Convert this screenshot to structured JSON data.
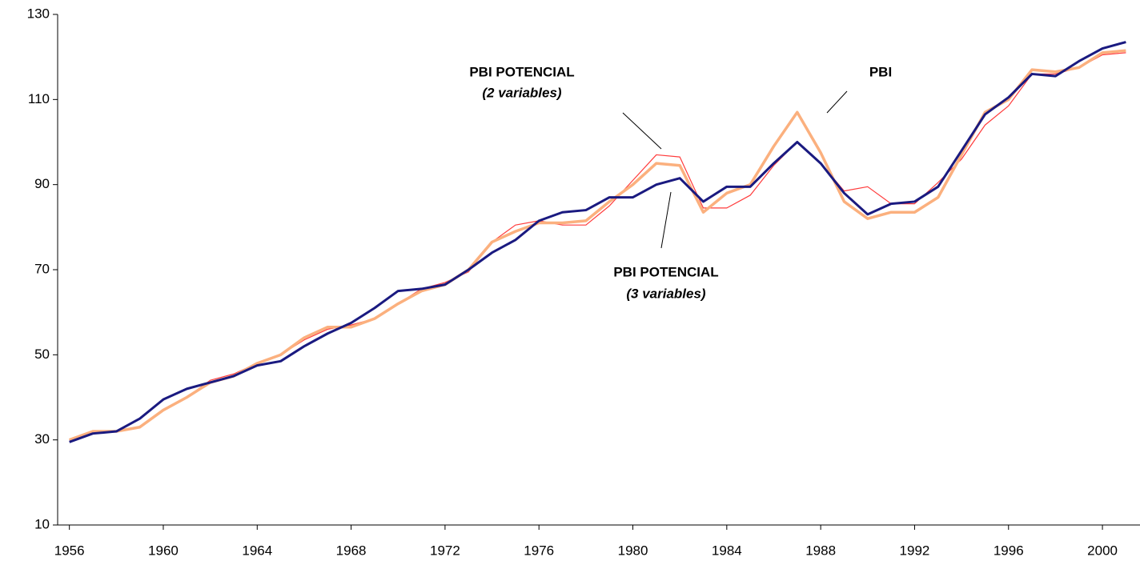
{
  "chart_data": {
    "type": "line",
    "x": [
      1956,
      1957,
      1958,
      1959,
      1960,
      1961,
      1962,
      1963,
      1964,
      1965,
      1966,
      1967,
      1968,
      1969,
      1970,
      1971,
      1972,
      1973,
      1974,
      1975,
      1976,
      1977,
      1978,
      1979,
      1980,
      1981,
      1982,
      1983,
      1984,
      1985,
      1986,
      1987,
      1988,
      1989,
      1990,
      1991,
      1992,
      1993,
      1994,
      1995,
      1996,
      1997,
      1998,
      1999,
      2000,
      2001
    ],
    "series": [
      {
        "color": "#ff3b3b",
        "width": 1.2,
        "values": [
          30,
          32,
          32,
          33,
          37,
          40,
          44,
          45.5,
          48,
          50,
          53.5,
          56,
          57,
          58.5,
          62,
          65.5,
          67,
          69.5,
          76.5,
          80.5,
          81.5,
          80.5,
          80.5,
          85,
          91,
          97,
          96.5,
          84.5,
          84.5,
          87.5,
          94.5,
          100,
          95,
          88.5,
          89.5,
          85.5,
          85.5,
          90.5,
          96,
          104,
          108.5,
          116,
          116,
          117.5,
          120.5,
          121
        ]
      },
      {
        "color": "#fbb07e",
        "width": 3.5,
        "values": [
          30,
          32,
          32,
          33,
          37,
          40,
          43.5,
          45,
          48,
          50,
          54,
          56.5,
          56.5,
          58.5,
          62,
          65,
          66.5,
          70,
          76.5,
          79,
          81,
          81,
          81.5,
          86,
          90,
          95,
          94.5,
          83.5,
          88,
          90,
          99,
          107,
          97.5,
          86,
          82,
          83.5,
          83.5,
          87,
          97,
          107,
          110,
          117,
          116.5,
          117.5,
          121,
          121.5
        ]
      },
      {
        "color": "#1a1a80",
        "width": 3,
        "values": [
          29.5,
          31.5,
          32,
          35,
          39.5,
          42,
          43.5,
          45,
          47.5,
          48.5,
          52,
          55,
          57.5,
          61,
          65,
          65.5,
          66.5,
          70,
          74,
          77,
          81.5,
          83.5,
          84,
          87,
          87,
          90,
          91.5,
          86,
          89.5,
          89.5,
          95,
          100,
          95,
          88,
          83,
          85.5,
          86,
          89.5,
          98,
          106.5,
          110.5,
          116,
          115.5,
          119,
          122,
          123.5
        ]
      }
    ],
    "annotations": [
      {
        "text": "PBI POTENCIAL",
        "subtext": "(2 variables)"
      },
      {
        "text": "PBI"
      },
      {
        "text": "PBI POTENCIAL",
        "subtext": "(3 variables)"
      }
    ],
    "xlim": [
      1955.5,
      2001.6
    ],
    "xticks": [
      1956,
      1960,
      1964,
      1968,
      1972,
      1976,
      1980,
      1984,
      1988,
      1992,
      1996,
      2000
    ],
    "ylim": [
      10,
      130
    ],
    "yticks": [
      10,
      30,
      50,
      70,
      90,
      110,
      130
    ],
    "grid": false
  }
}
